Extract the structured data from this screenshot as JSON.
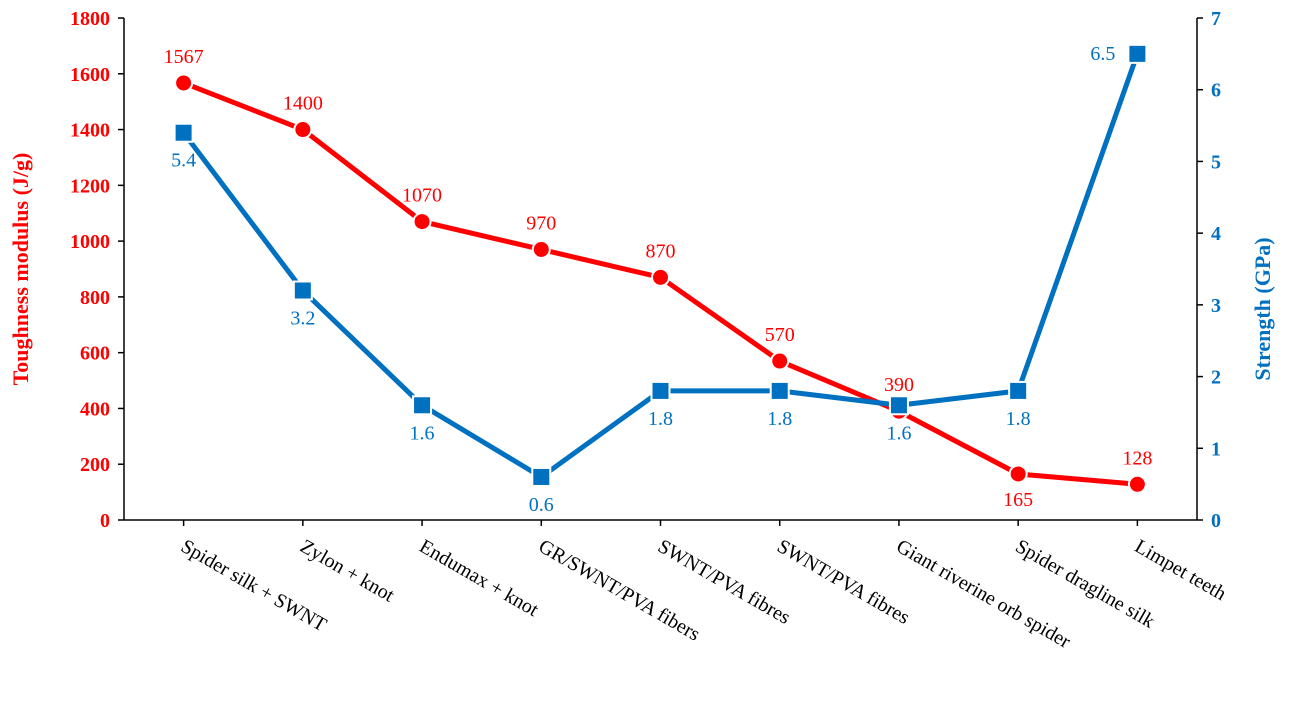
{
  "chart_data": {
    "type": "line",
    "categories": [
      "Spider silk + SWNT",
      "Zylon + knot",
      "Endumax + knot",
      "GR/SWNT/PVA fibers",
      "SWNT/PVA fibres",
      "SWNT/PVA fibres",
      "Giant riverine orb spider",
      "Spider dragline silk",
      "Limpet teeth"
    ],
    "series": [
      {
        "axis": "left",
        "color": "#ff0000",
        "marker": "circle",
        "values": [
          1567,
          1400,
          1070,
          970,
          870,
          570,
          390,
          165,
          128
        ],
        "labels": [
          "1567",
          "1400",
          "1070",
          "970",
          "870",
          "570",
          "390",
          "165",
          "128"
        ]
      },
      {
        "axis": "right",
        "color": "#0070c0",
        "marker": "square",
        "values": [
          5.4,
          3.2,
          1.6,
          0.6,
          1.8,
          1.8,
          1.6,
          1.8,
          6.5
        ],
        "labels": [
          "5.4",
          "3.2",
          "1.6",
          "0.6",
          "1.8",
          "1.8",
          "1.6",
          "1.8",
          "6.5"
        ]
      }
    ],
    "y_left": {
      "label": "Toughness modulus (J/g)",
      "range": [
        0,
        1800
      ],
      "ticks": [
        "0",
        "200",
        "400",
        "600",
        "800",
        "1000",
        "1200",
        "1400",
        "1600",
        "1800"
      ],
      "color": "#ff0000"
    },
    "y_right": {
      "label": "Strength (GPa)",
      "range": [
        0,
        7
      ],
      "ticks": [
        "0",
        "1",
        "2",
        "3",
        "4",
        "5",
        "6",
        "7"
      ],
      "color": "#0070c0"
    },
    "grid": false,
    "legend": "none"
  }
}
